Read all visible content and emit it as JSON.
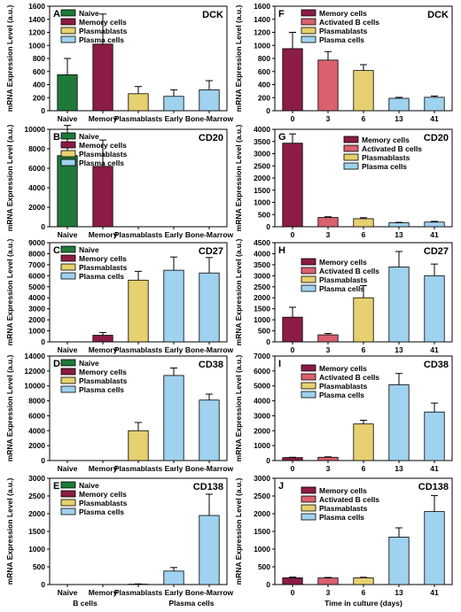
{
  "colors": {
    "naive": "#1f7a3a",
    "memory": "#8b1c45",
    "activated": "#d9606f",
    "plasmablasts": "#e6d06f",
    "plasma": "#9fd2ee"
  },
  "ylabel": "mRNA Expression Level (a.u.)",
  "left_xlabel_line2": {
    "b_cells": "B cells",
    "plasma_cells": "Plasma cells"
  },
  "right_xlabel": "Time in culture (days)",
  "chart_data": [
    {
      "type": "bar",
      "panel": "A",
      "gene": "DCK",
      "categories": [
        "Naive",
        "Memory",
        "Plasmablasts",
        "Early",
        "Bone-Marrow"
      ],
      "values": [
        550,
        1020,
        260,
        220,
        320
      ],
      "errors": [
        250,
        460,
        110,
        100,
        140
      ],
      "colors": [
        "naive",
        "memory",
        "plasmablasts",
        "plasma",
        "plasma"
      ],
      "ylim": [
        0,
        1600
      ],
      "yticks": [
        "0",
        "200",
        "400",
        "600",
        "800",
        "1000",
        "1200",
        "1400",
        "1600"
      ],
      "legend": [
        "Naive",
        "Memory cells",
        "Plasmablasts",
        "Plasma cells"
      ],
      "legend_colors": [
        "naive",
        "memory",
        "plasmablasts",
        "plasma"
      ]
    },
    {
      "type": "bar",
      "panel": "B",
      "gene": "CD20",
      "categories": [
        "Naive",
        "Memory",
        "Plasmablasts",
        "Early",
        "Bone-Marrow"
      ],
      "values": [
        7300,
        6200,
        0,
        0,
        0
      ],
      "errors": [
        3100,
        2700,
        0,
        0,
        0
      ],
      "colors": [
        "naive",
        "memory",
        "plasmablasts",
        "plasma",
        "plasma"
      ],
      "ylim": [
        0,
        10000
      ],
      "yticks": [
        "0",
        "2000",
        "4000",
        "6000",
        "8000",
        "10000"
      ],
      "legend": [
        "Naive",
        "Memory cells",
        "Plasmablasts",
        "Plasma cells"
      ],
      "legend_colors": [
        "naive",
        "memory",
        "plasmablasts",
        "plasma"
      ]
    },
    {
      "type": "bar",
      "panel": "C",
      "gene": "CD27",
      "categories": [
        "Naive",
        "Memory",
        "Plasmablasts",
        "Early",
        "Bone-Marrow"
      ],
      "values": [
        0,
        600,
        5600,
        6500,
        6250
      ],
      "errors": [
        0,
        250,
        800,
        1200,
        1400
      ],
      "colors": [
        "naive",
        "memory",
        "plasmablasts",
        "plasma",
        "plasma"
      ],
      "ylim": [
        0,
        9000
      ],
      "yticks": [
        "0",
        "1000",
        "2000",
        "3000",
        "4000",
        "5000",
        "6000",
        "7000",
        "8000",
        "9000"
      ],
      "legend": [
        "Naive",
        "Memory cells",
        "Plasmablasts",
        "Plasma cells"
      ],
      "legend_colors": [
        "naive",
        "memory",
        "plasmablasts",
        "plasma"
      ]
    },
    {
      "type": "bar",
      "panel": "D",
      "gene": "CD38",
      "categories": [
        "Naive",
        "Memory",
        "Plasmablasts",
        "Early",
        "Bone-Marrow"
      ],
      "values": [
        0,
        0,
        4000,
        11400,
        8100
      ],
      "errors": [
        0,
        0,
        1100,
        1000,
        800
      ],
      "colors": [
        "naive",
        "memory",
        "plasmablasts",
        "plasma",
        "plasma"
      ],
      "ylim": [
        0,
        14000
      ],
      "yticks": [
        "0",
        "2000",
        "4000",
        "6000",
        "8000",
        "10000",
        "12000",
        "14000"
      ],
      "legend": [
        "Naive",
        "Memory cells",
        "Plasmablasts",
        "Plasma cells"
      ],
      "legend_colors": [
        "naive",
        "memory",
        "plasmablasts",
        "plasma"
      ]
    },
    {
      "type": "bar",
      "panel": "E",
      "gene": "CD138",
      "categories": [
        "Naive",
        "Memory",
        "Plasmablasts",
        "Early",
        "Bone-Marrow"
      ],
      "values": [
        0,
        0,
        10,
        380,
        1950
      ],
      "errors": [
        0,
        0,
        8,
        100,
        600
      ],
      "colors": [
        "naive",
        "memory",
        "plasmablasts",
        "plasma",
        "plasma"
      ],
      "ylim": [
        0,
        3000
      ],
      "yticks": [
        "0",
        "500",
        "1000",
        "1500",
        "2000",
        "2500",
        "3000"
      ],
      "legend": [
        "Naive",
        "Memory cells",
        "Plasmablasts",
        "Plasma cells"
      ],
      "legend_colors": [
        "naive",
        "memory",
        "plasmablasts",
        "plasma"
      ]
    },
    {
      "type": "bar",
      "panel": "F",
      "gene": "DCK",
      "categories": [
        "0",
        "3",
        "6",
        "13",
        "41"
      ],
      "values": [
        950,
        775,
        615,
        190,
        205
      ],
      "errors": [
        250,
        130,
        90,
        15,
        20
      ],
      "colors": [
        "memory",
        "activated",
        "plasmablasts",
        "plasma",
        "plasma"
      ],
      "ylim": [
        0,
        1600
      ],
      "yticks": [
        "0",
        "200",
        "400",
        "600",
        "800",
        "1000",
        "1200",
        "1400",
        "1600"
      ],
      "legend": [
        "Memory cells",
        "Activated B cells",
        "Plasmablasts",
        "Plasma cells"
      ],
      "legend_colors": [
        "memory",
        "activated",
        "plasmablasts",
        "plasma"
      ]
    },
    {
      "type": "bar",
      "panel": "G",
      "gene": "CD20",
      "categories": [
        "0",
        "3",
        "6",
        "13",
        "41"
      ],
      "values": [
        3430,
        380,
        330,
        160,
        190
      ],
      "errors": [
        380,
        30,
        40,
        20,
        30
      ],
      "colors": [
        "memory",
        "activated",
        "plasmablasts",
        "plasma",
        "plasma"
      ],
      "ylim": [
        0,
        4000
      ],
      "yticks": [
        "0",
        "500",
        "1000",
        "1500",
        "2000",
        "2500",
        "3000",
        "3500",
        "4000"
      ],
      "legend": [
        "Memory cells",
        "Activated B cells",
        "Plasmablasts",
        "Plasma cells"
      ],
      "legend_colors": [
        "memory",
        "activated",
        "plasmablasts",
        "plasma"
      ]
    },
    {
      "type": "bar",
      "panel": "H",
      "gene": "CD27",
      "categories": [
        "0",
        "3",
        "6",
        "13",
        "41"
      ],
      "values": [
        1120,
        320,
        2000,
        3400,
        3000
      ],
      "errors": [
        450,
        60,
        550,
        700,
        530
      ],
      "colors": [
        "memory",
        "activated",
        "plasmablasts",
        "plasma",
        "plasma"
      ],
      "ylim": [
        0,
        4500
      ],
      "yticks": [
        "0",
        "500",
        "1000",
        "1500",
        "2000",
        "2500",
        "3000",
        "3500",
        "4000",
        "4500"
      ],
      "legend": [
        "Memory cells",
        "Activated B cells",
        "Plasmablasts",
        "Plasma cells"
      ],
      "legend_colors": [
        "memory",
        "activated",
        "plasmablasts",
        "plasma"
      ]
    },
    {
      "type": "bar",
      "panel": "I",
      "gene": "CD38",
      "categories": [
        "0",
        "3",
        "6",
        "13",
        "41"
      ],
      "values": [
        200,
        220,
        2450,
        5080,
        3250
      ],
      "errors": [
        20,
        30,
        250,
        750,
        600
      ],
      "colors": [
        "memory",
        "activated",
        "plasmablasts",
        "plasma",
        "plasma"
      ],
      "ylim": [
        0,
        7000
      ],
      "yticks": [
        "0",
        "1000",
        "2000",
        "3000",
        "4000",
        "5000",
        "6000",
        "7000"
      ],
      "legend": [
        "Memory cells",
        "Activated B cells",
        "Plasmablasts",
        "Plasma cells"
      ],
      "legend_colors": [
        "memory",
        "activated",
        "plasmablasts",
        "plasma"
      ]
    },
    {
      "type": "bar",
      "panel": "J",
      "gene": "CD138",
      "categories": [
        "0",
        "3",
        "6",
        "13",
        "41"
      ],
      "values": [
        190,
        185,
        190,
        1340,
        2060
      ],
      "errors": [
        20,
        15,
        15,
        260,
        450
      ],
      "colors": [
        "memory",
        "activated",
        "plasmablasts",
        "plasma",
        "plasma"
      ],
      "ylim": [
        0,
        3000
      ],
      "yticks": [
        "0",
        "500",
        "1000",
        "1500",
        "2000",
        "2500",
        "3000"
      ],
      "legend": [
        "Memory cells",
        "Activated B cells",
        "Plasmablasts",
        "Plasma cells"
      ],
      "legend_colors": [
        "memory",
        "activated",
        "plasmablasts",
        "plasma"
      ]
    }
  ]
}
